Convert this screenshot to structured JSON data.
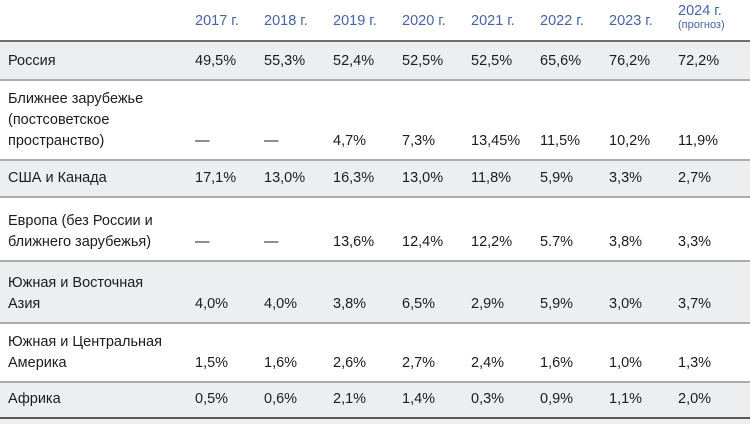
{
  "colors": {
    "header_text": "#4464a8",
    "row_shade": "#edeef0"
  },
  "table": {
    "year_columns": [
      "2017 г.",
      "2018 г.",
      "2019 г.",
      "2020 г.",
      "2021 г.",
      "2022 г.",
      "2023 г."
    ],
    "forecast_column": {
      "year": "2024 г.",
      "note": "(прогноз)"
    },
    "rows": [
      {
        "label": "Россия",
        "values": [
          "49,5%",
          "55,3%",
          "52,4%",
          "52,5%",
          "52,5%",
          "65,6%",
          "76,2%",
          "72,2%"
        ]
      },
      {
        "label": "Ближнее зарубежье\n(постсоветское\nпространство)",
        "values": [
          "—",
          "—",
          "4,7%",
          "7,3%",
          "13,45%",
          "11,5%",
          "10,2%",
          "11,9%"
        ]
      },
      {
        "label": "США и Канада",
        "values": [
          "17,1%",
          "13,0%",
          "16,3%",
          "13,0%",
          "11,8%",
          "5,9%",
          "3,3%",
          "2,7%"
        ]
      },
      {
        "label": "Европа (без России и\nближнего зарубежья)",
        "values": [
          "—",
          "—",
          "13,6%",
          "12,4%",
          "12,2%",
          "5.7%",
          "3,8%",
          "3,3%"
        ]
      },
      {
        "label": "Южная и Восточная\nАзия",
        "values": [
          "4,0%",
          "4,0%",
          "3,8%",
          "6,5%",
          "2,9%",
          "5,9%",
          "3,0%",
          "3,7%"
        ]
      },
      {
        "label": "Южная и Центральная\nАмерика",
        "values": [
          "1,5%",
          "1,6%",
          "2,6%",
          "2,7%",
          "2,4%",
          "1,6%",
          "1,0%",
          "1,3%"
        ]
      },
      {
        "label": "Африка",
        "values": [
          "0,5%",
          "0,6%",
          "2,1%",
          "1,4%",
          "0,3%",
          "0,9%",
          "1,1%",
          "2,0%"
        ]
      }
    ]
  },
  "chart_data": {
    "type": "table",
    "title": "",
    "unit": "%",
    "categories": [
      "2017",
      "2018",
      "2019",
      "2020",
      "2021",
      "2022",
      "2023",
      "2024 (прогноз)"
    ],
    "series": [
      {
        "name": "Россия",
        "values": [
          49.5,
          55.3,
          52.4,
          52.5,
          52.5,
          65.6,
          76.2,
          72.2
        ]
      },
      {
        "name": "Ближнее зарубежье (постсоветское пространство)",
        "values": [
          null,
          null,
          4.7,
          7.3,
          13.45,
          11.5,
          10.2,
          11.9
        ]
      },
      {
        "name": "США и Канада",
        "values": [
          17.1,
          13.0,
          16.3,
          13.0,
          11.8,
          5.9,
          3.3,
          2.7
        ]
      },
      {
        "name": "Европа (без России и ближнего зарубежья)",
        "values": [
          null,
          null,
          13.6,
          12.4,
          12.2,
          5.7,
          3.8,
          3.3
        ]
      },
      {
        "name": "Южная и Восточная Азия",
        "values": [
          4.0,
          4.0,
          3.8,
          6.5,
          2.9,
          5.9,
          3.0,
          3.7
        ]
      },
      {
        "name": "Южная и Центральная Америка",
        "values": [
          1.5,
          1.6,
          2.6,
          2.7,
          2.4,
          1.6,
          1.0,
          1.3
        ]
      },
      {
        "name": "Африка",
        "values": [
          0.5,
          0.6,
          2.1,
          1.4,
          0.3,
          0.9,
          1.1,
          2.0
        ]
      }
    ]
  }
}
